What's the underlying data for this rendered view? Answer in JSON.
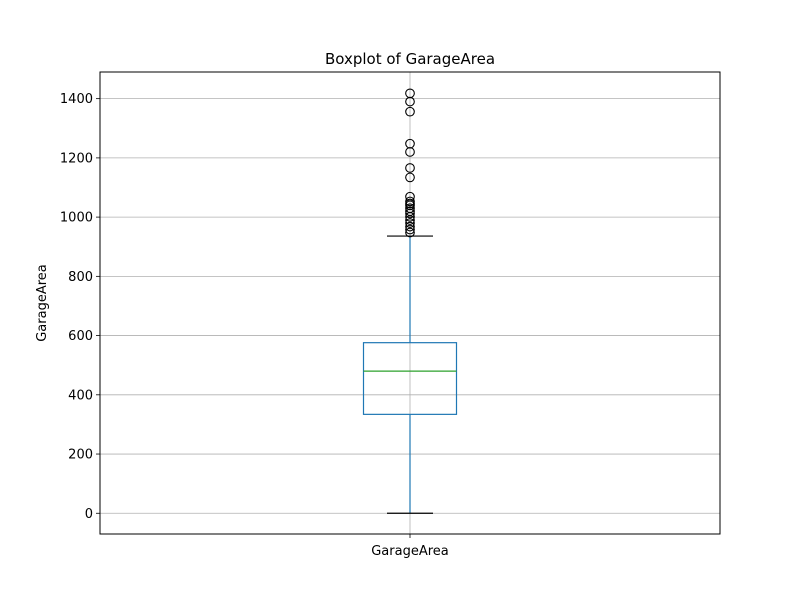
{
  "chart_data": {
    "type": "boxplot",
    "title": "Boxplot of GarageArea",
    "xlabel": "",
    "ylabel": "GarageArea",
    "categories": [
      "GarageArea"
    ],
    "ylim": [
      -70,
      1490
    ],
    "yticks": [
      0,
      200,
      400,
      600,
      800,
      1000,
      1200,
      1400
    ],
    "grid": true,
    "colors": {
      "box": "#1f77b4",
      "median": "#2ca02c",
      "whisker_cap": "#000000",
      "flier": "#000000",
      "grid": "#b0b0b0"
    },
    "box": {
      "whisker_low": 0,
      "q1": 334,
      "median": 480,
      "q3": 576,
      "whisker_high": 936,
      "outliers": [
        948,
        958,
        968,
        980,
        990,
        1001,
        1012,
        1020,
        1030,
        1040,
        1046,
        1053,
        1069,
        1134,
        1166,
        1220,
        1248,
        1356,
        1390,
        1418
      ]
    }
  }
}
